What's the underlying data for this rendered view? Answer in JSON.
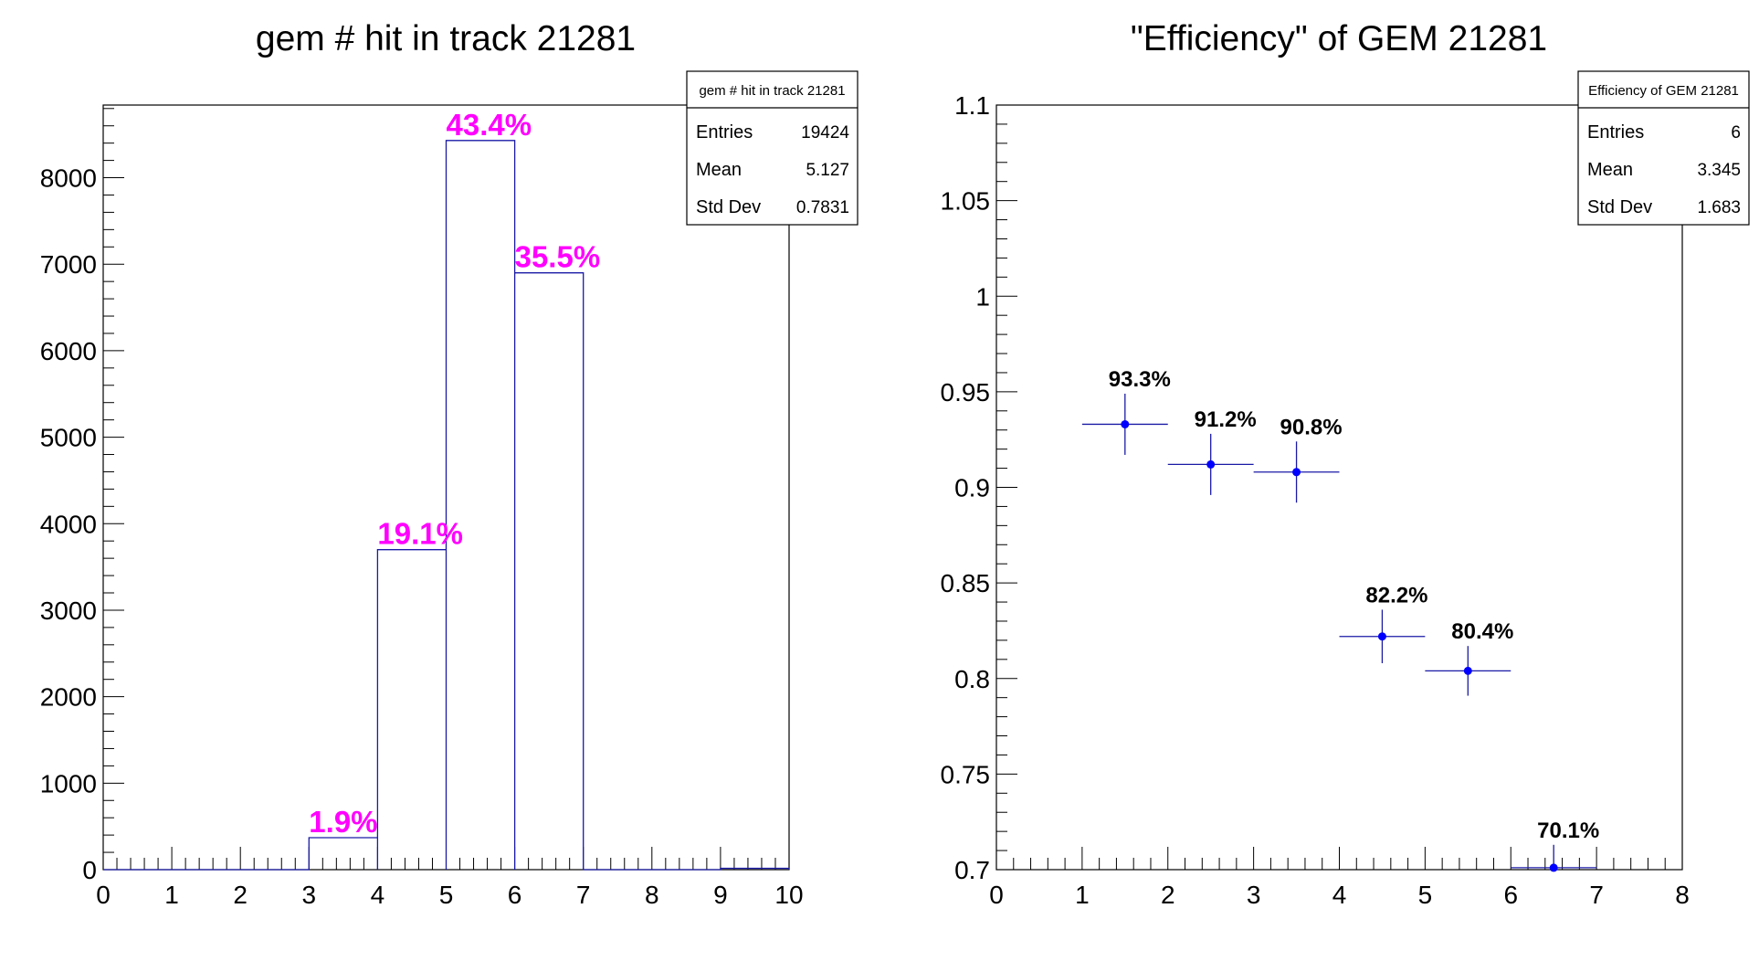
{
  "chart_data": [
    {
      "type": "bar",
      "title": "gem # hit in track 21281",
      "xlabel": "",
      "ylabel": "",
      "xlim": [
        0,
        10
      ],
      "ylim": [
        0,
        8840
      ],
      "x_ticks": [
        "0",
        "1",
        "2",
        "3",
        "4",
        "5",
        "6",
        "7",
        "8",
        "9",
        "10"
      ],
      "y_ticks": [
        "0",
        "1000",
        "2000",
        "3000",
        "4000",
        "5000",
        "6000",
        "7000",
        "8000"
      ],
      "bins": [
        {
          "low": 3,
          "high": 4,
          "value": 370,
          "label": "1.9%"
        },
        {
          "low": 4,
          "high": 5,
          "value": 3700,
          "label": "19.1%"
        },
        {
          "low": 5,
          "high": 6,
          "value": 8430,
          "label": "43.4%"
        },
        {
          "low": 6,
          "high": 7,
          "value": 6900,
          "label": "35.5%"
        },
        {
          "low": 9,
          "high": 10,
          "value": 15,
          "label": ""
        }
      ],
      "line_color": "#1a1aa6",
      "label_color": "#ff00ff",
      "grid": false,
      "stats": {
        "title": "gem # hit in track 21281",
        "rows": [
          {
            "key": "Entries",
            "value": "19424"
          },
          {
            "key": "Mean",
            "value": "5.127"
          },
          {
            "key": "Std Dev",
            "value": "0.7831"
          }
        ]
      }
    },
    {
      "type": "scatter",
      "title": "\"Efficiency\" of GEM 21281",
      "xlabel": "",
      "ylabel": "",
      "xlim": [
        0,
        8
      ],
      "ylim": [
        0.7,
        1.1
      ],
      "x_ticks": [
        "0",
        "1",
        "2",
        "3",
        "4",
        "5",
        "6",
        "7",
        "8"
      ],
      "y_ticks": [
        "0.7",
        "0.75",
        "0.8",
        "0.85",
        "0.9",
        "0.95",
        "1",
        "1.05",
        "1.1"
      ],
      "points": [
        {
          "x": 1.5,
          "y": 0.933,
          "yerr": 0.016,
          "label": "93.3%"
        },
        {
          "x": 2.5,
          "y": 0.912,
          "yerr": 0.016,
          "label": "91.2%"
        },
        {
          "x": 3.5,
          "y": 0.908,
          "yerr": 0.016,
          "label": "90.8%"
        },
        {
          "x": 4.5,
          "y": 0.822,
          "yerr": 0.014,
          "label": "82.2%"
        },
        {
          "x": 5.5,
          "y": 0.804,
          "yerr": 0.013,
          "label": "80.4%"
        },
        {
          "x": 6.5,
          "y": 0.701,
          "yerr": 0.012,
          "label": "70.1%"
        }
      ],
      "xerr": 0.5,
      "line_color": "#1a1aa6",
      "marker_color": "#0000ff",
      "label_color": "#000000",
      "grid": false,
      "stats": {
        "title": "Efficiency of GEM 21281",
        "rows": [
          {
            "key": "Entries",
            "value": "6"
          },
          {
            "key": "Mean",
            "value": "3.345"
          },
          {
            "key": "Std Dev",
            "value": "1.683"
          }
        ]
      }
    }
  ]
}
